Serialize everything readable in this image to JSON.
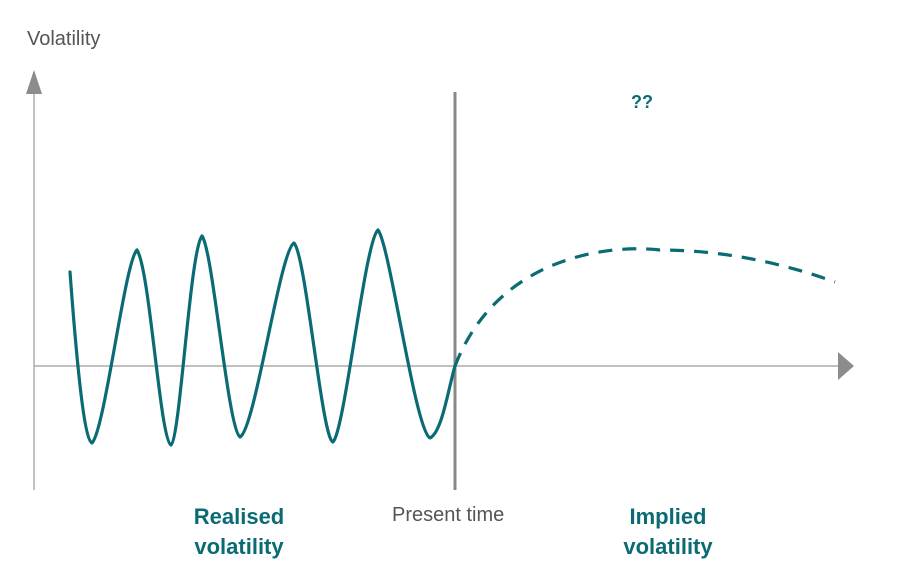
{
  "y_axis": {
    "label": "Volatility"
  },
  "divider": {
    "label": "Present time"
  },
  "regions": {
    "past": {
      "label": "Realised volatility"
    },
    "future": {
      "label": "Implied volatility",
      "annotation": "??"
    }
  },
  "colors": {
    "axis": "#9a9a9a",
    "divider": "#888888",
    "curve": "#0a6b74",
    "label_gray": "#555555"
  }
}
